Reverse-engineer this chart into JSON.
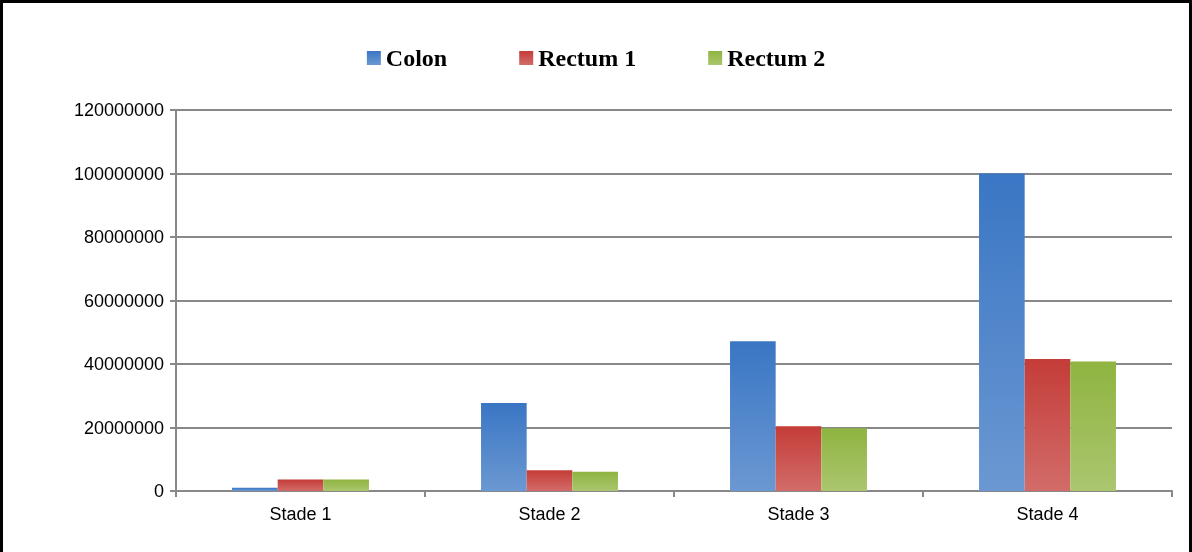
{
  "chart_data": {
    "type": "bar",
    "categories": [
      "Stade 1",
      "Stade 2",
      "Stade 3",
      "Stade 4"
    ],
    "series": [
      {
        "name": "Colon",
        "color": "#3a76c4",
        "values": [
          1000000,
          27700000,
          47200000,
          100000000
        ]
      },
      {
        "name": "Rectum 1",
        "color": "#c43c38",
        "values": [
          3600000,
          6500000,
          20400000,
          41600000
        ]
      },
      {
        "name": "Rectum 2",
        "color": "#8fb440",
        "values": [
          3600000,
          6100000,
          19800000,
          40800000
        ]
      }
    ],
    "ylim": [
      0,
      120000000
    ],
    "yticks": [
      0,
      20000000,
      40000000,
      60000000,
      80000000,
      100000000,
      120000000
    ],
    "grid": "y",
    "legend": "top"
  }
}
